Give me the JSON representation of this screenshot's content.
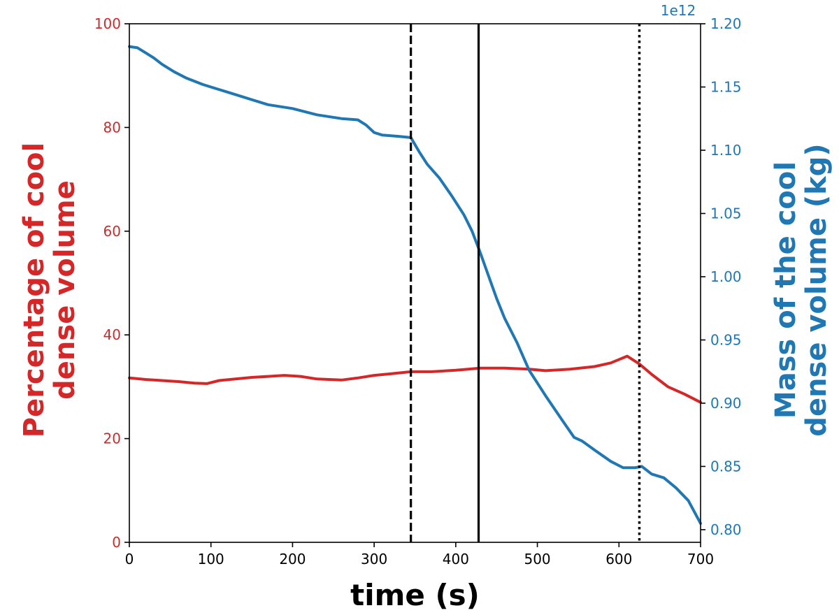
{
  "chart_data": {
    "type": "line",
    "xlabel": "time (s)",
    "xlim": [
      0,
      700
    ],
    "x_ticks": [
      0,
      100,
      200,
      300,
      400,
      500,
      600,
      700
    ],
    "y_left": {
      "label": "Percentage of cool\ndense volume",
      "lim": [
        0,
        100
      ],
      "ticks": [
        0,
        20,
        40,
        60,
        80,
        100
      ],
      "color": "#d62728"
    },
    "y_right": {
      "label": "Mass of the cool\ndense volume (kg)",
      "lim": [
        0.79,
        1.2
      ],
      "ticks": [
        "0.80",
        "0.85",
        "0.90",
        "0.95",
        "1.00",
        "1.05",
        "1.10",
        "1.15",
        "1.20"
      ],
      "offset_text": "1e12",
      "color": "#1f77b4"
    },
    "series": [
      {
        "axis": "left",
        "color": "#d62728",
        "x": [
          0,
          20,
          40,
          60,
          80,
          95,
          110,
          130,
          150,
          170,
          190,
          210,
          230,
          260,
          280,
          300,
          320,
          345,
          370,
          400,
          430,
          460,
          490,
          510,
          540,
          570,
          590,
          610,
          625,
          640,
          660,
          680,
          700
        ],
        "y": [
          31.7,
          31.4,
          31.2,
          31.0,
          30.7,
          30.6,
          31.2,
          31.5,
          31.8,
          32.0,
          32.2,
          32.0,
          31.5,
          31.3,
          31.7,
          32.2,
          32.5,
          32.9,
          32.9,
          33.2,
          33.6,
          33.6,
          33.4,
          33.1,
          33.4,
          33.9,
          34.6,
          35.9,
          34.4,
          32.4,
          30.0,
          28.6,
          27.0
        ]
      },
      {
        "axis": "right",
        "color": "#1f77b4",
        "x": [
          0,
          10,
          20,
          30,
          40,
          55,
          70,
          90,
          110,
          130,
          150,
          170,
          200,
          230,
          260,
          280,
          290,
          300,
          310,
          330,
          345,
          355,
          365,
          380,
          395,
          410,
          420,
          430,
          440,
          450,
          460,
          475,
          490,
          510,
          530,
          545,
          555,
          570,
          590,
          605,
          620,
          628,
          640,
          655,
          670,
          685,
          700
        ],
        "y": [
          1.182,
          1.181,
          1.177,
          1.173,
          1.168,
          1.162,
          1.157,
          1.152,
          1.148,
          1.144,
          1.14,
          1.136,
          1.133,
          1.128,
          1.125,
          1.124,
          1.12,
          1.114,
          1.112,
          1.111,
          1.11,
          1.099,
          1.089,
          1.078,
          1.064,
          1.049,
          1.036,
          1.019,
          1.001,
          0.983,
          0.967,
          0.948,
          0.926,
          0.906,
          0.887,
          0.873,
          0.87,
          0.863,
          0.854,
          0.849,
          0.849,
          0.85,
          0.844,
          0.841,
          0.833,
          0.823,
          0.805
        ]
      }
    ],
    "vlines": [
      {
        "x": 345,
        "style": "dashed",
        "color": "#000000"
      },
      {
        "x": 428,
        "style": "solid",
        "color": "#000000"
      },
      {
        "x": 625,
        "style": "dotted",
        "color": "#000000"
      }
    ],
    "grid": false,
    "legend": "none"
  }
}
